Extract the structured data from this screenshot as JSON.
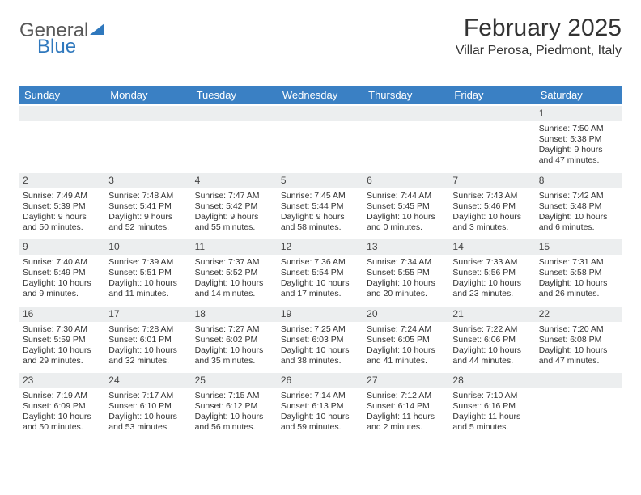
{
  "brand": {
    "part1": "General",
    "part2": "Blue"
  },
  "title": "February 2025",
  "location": "Villar Perosa, Piedmont, Italy",
  "colors": {
    "header_bg": "#3a80c4",
    "header_text": "#ffffff",
    "daynum_bg": "#eceeef",
    "text": "#333333",
    "brand_gray": "#585858",
    "brand_blue": "#2f78bd"
  },
  "day_names": [
    "Sunday",
    "Monday",
    "Tuesday",
    "Wednesday",
    "Thursday",
    "Friday",
    "Saturday"
  ],
  "weeks": [
    [
      null,
      null,
      null,
      null,
      null,
      null,
      {
        "n": "1",
        "sunrise": "Sunrise: 7:50 AM",
        "sunset": "Sunset: 5:38 PM",
        "d1": "Daylight: 9 hours",
        "d2": "and 47 minutes."
      }
    ],
    [
      {
        "n": "2",
        "sunrise": "Sunrise: 7:49 AM",
        "sunset": "Sunset: 5:39 PM",
        "d1": "Daylight: 9 hours",
        "d2": "and 50 minutes."
      },
      {
        "n": "3",
        "sunrise": "Sunrise: 7:48 AM",
        "sunset": "Sunset: 5:41 PM",
        "d1": "Daylight: 9 hours",
        "d2": "and 52 minutes."
      },
      {
        "n": "4",
        "sunrise": "Sunrise: 7:47 AM",
        "sunset": "Sunset: 5:42 PM",
        "d1": "Daylight: 9 hours",
        "d2": "and 55 minutes."
      },
      {
        "n": "5",
        "sunrise": "Sunrise: 7:45 AM",
        "sunset": "Sunset: 5:44 PM",
        "d1": "Daylight: 9 hours",
        "d2": "and 58 minutes."
      },
      {
        "n": "6",
        "sunrise": "Sunrise: 7:44 AM",
        "sunset": "Sunset: 5:45 PM",
        "d1": "Daylight: 10 hours",
        "d2": "and 0 minutes."
      },
      {
        "n": "7",
        "sunrise": "Sunrise: 7:43 AM",
        "sunset": "Sunset: 5:46 PM",
        "d1": "Daylight: 10 hours",
        "d2": "and 3 minutes."
      },
      {
        "n": "8",
        "sunrise": "Sunrise: 7:42 AM",
        "sunset": "Sunset: 5:48 PM",
        "d1": "Daylight: 10 hours",
        "d2": "and 6 minutes."
      }
    ],
    [
      {
        "n": "9",
        "sunrise": "Sunrise: 7:40 AM",
        "sunset": "Sunset: 5:49 PM",
        "d1": "Daylight: 10 hours",
        "d2": "and 9 minutes."
      },
      {
        "n": "10",
        "sunrise": "Sunrise: 7:39 AM",
        "sunset": "Sunset: 5:51 PM",
        "d1": "Daylight: 10 hours",
        "d2": "and 11 minutes."
      },
      {
        "n": "11",
        "sunrise": "Sunrise: 7:37 AM",
        "sunset": "Sunset: 5:52 PM",
        "d1": "Daylight: 10 hours",
        "d2": "and 14 minutes."
      },
      {
        "n": "12",
        "sunrise": "Sunrise: 7:36 AM",
        "sunset": "Sunset: 5:54 PM",
        "d1": "Daylight: 10 hours",
        "d2": "and 17 minutes."
      },
      {
        "n": "13",
        "sunrise": "Sunrise: 7:34 AM",
        "sunset": "Sunset: 5:55 PM",
        "d1": "Daylight: 10 hours",
        "d2": "and 20 minutes."
      },
      {
        "n": "14",
        "sunrise": "Sunrise: 7:33 AM",
        "sunset": "Sunset: 5:56 PM",
        "d1": "Daylight: 10 hours",
        "d2": "and 23 minutes."
      },
      {
        "n": "15",
        "sunrise": "Sunrise: 7:31 AM",
        "sunset": "Sunset: 5:58 PM",
        "d1": "Daylight: 10 hours",
        "d2": "and 26 minutes."
      }
    ],
    [
      {
        "n": "16",
        "sunrise": "Sunrise: 7:30 AM",
        "sunset": "Sunset: 5:59 PM",
        "d1": "Daylight: 10 hours",
        "d2": "and 29 minutes."
      },
      {
        "n": "17",
        "sunrise": "Sunrise: 7:28 AM",
        "sunset": "Sunset: 6:01 PM",
        "d1": "Daylight: 10 hours",
        "d2": "and 32 minutes."
      },
      {
        "n": "18",
        "sunrise": "Sunrise: 7:27 AM",
        "sunset": "Sunset: 6:02 PM",
        "d1": "Daylight: 10 hours",
        "d2": "and 35 minutes."
      },
      {
        "n": "19",
        "sunrise": "Sunrise: 7:25 AM",
        "sunset": "Sunset: 6:03 PM",
        "d1": "Daylight: 10 hours",
        "d2": "and 38 minutes."
      },
      {
        "n": "20",
        "sunrise": "Sunrise: 7:24 AM",
        "sunset": "Sunset: 6:05 PM",
        "d1": "Daylight: 10 hours",
        "d2": "and 41 minutes."
      },
      {
        "n": "21",
        "sunrise": "Sunrise: 7:22 AM",
        "sunset": "Sunset: 6:06 PM",
        "d1": "Daylight: 10 hours",
        "d2": "and 44 minutes."
      },
      {
        "n": "22",
        "sunrise": "Sunrise: 7:20 AM",
        "sunset": "Sunset: 6:08 PM",
        "d1": "Daylight: 10 hours",
        "d2": "and 47 minutes."
      }
    ],
    [
      {
        "n": "23",
        "sunrise": "Sunrise: 7:19 AM",
        "sunset": "Sunset: 6:09 PM",
        "d1": "Daylight: 10 hours",
        "d2": "and 50 minutes."
      },
      {
        "n": "24",
        "sunrise": "Sunrise: 7:17 AM",
        "sunset": "Sunset: 6:10 PM",
        "d1": "Daylight: 10 hours",
        "d2": "and 53 minutes."
      },
      {
        "n": "25",
        "sunrise": "Sunrise: 7:15 AM",
        "sunset": "Sunset: 6:12 PM",
        "d1": "Daylight: 10 hours",
        "d2": "and 56 minutes."
      },
      {
        "n": "26",
        "sunrise": "Sunrise: 7:14 AM",
        "sunset": "Sunset: 6:13 PM",
        "d1": "Daylight: 10 hours",
        "d2": "and 59 minutes."
      },
      {
        "n": "27",
        "sunrise": "Sunrise: 7:12 AM",
        "sunset": "Sunset: 6:14 PM",
        "d1": "Daylight: 11 hours",
        "d2": "and 2 minutes."
      },
      {
        "n": "28",
        "sunrise": "Sunrise: 7:10 AM",
        "sunset": "Sunset: 6:16 PM",
        "d1": "Daylight: 11 hours",
        "d2": "and 5 minutes."
      },
      null
    ]
  ]
}
